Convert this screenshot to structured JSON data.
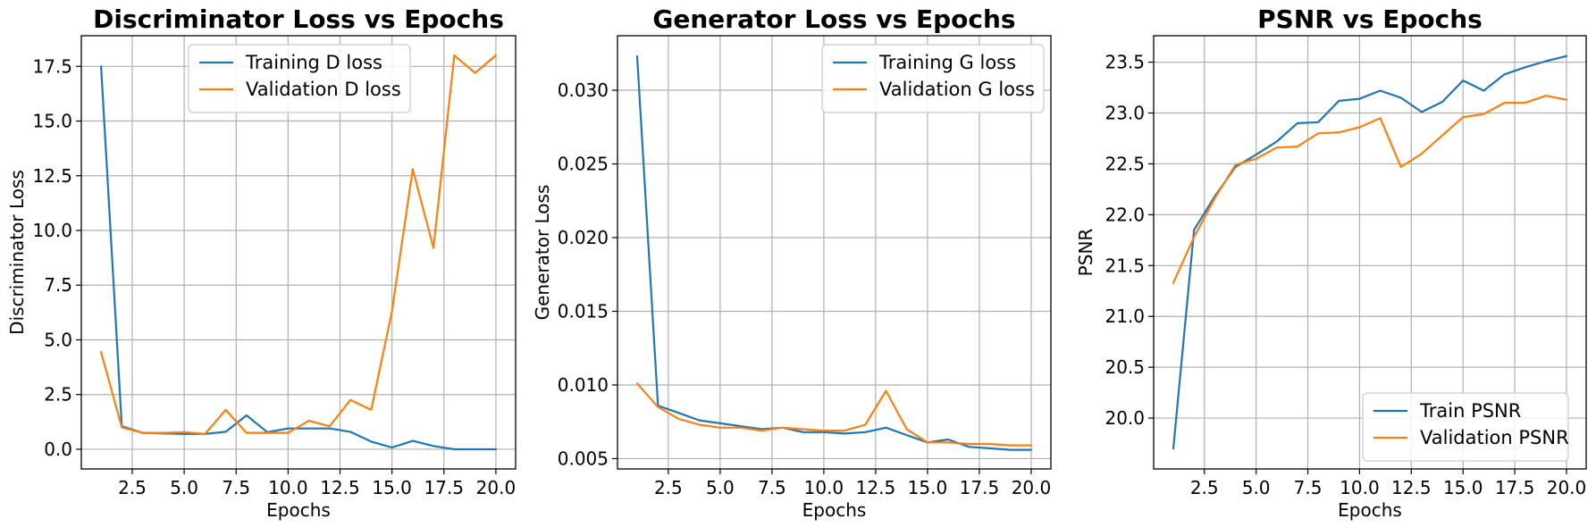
{
  "chart_data": [
    {
      "type": "line",
      "title": "Discriminator Loss vs Epochs",
      "xlabel": "Epochs",
      "ylabel": "Discriminator Loss",
      "xlim": [
        0.05,
        20.95
      ],
      "ylim": [
        -0.9,
        18.9
      ],
      "xticks": [
        2.5,
        5.0,
        7.5,
        10.0,
        12.5,
        15.0,
        17.5,
        20.0
      ],
      "xtick_labels": [
        "2.5",
        "5.0",
        "7.5",
        "10.0",
        "12.5",
        "15.0",
        "17.5",
        "20.0"
      ],
      "yticks": [
        0.0,
        2.5,
        5.0,
        7.5,
        10.0,
        12.5,
        15.0,
        17.5
      ],
      "ytick_labels": [
        "0.0",
        "2.5",
        "5.0",
        "7.5",
        "10.0",
        "12.5",
        "15.0",
        "17.5"
      ],
      "grid": true,
      "legend": "top-center",
      "x": [
        1,
        2,
        3,
        4,
        5,
        6,
        7,
        8,
        9,
        10,
        11,
        12,
        13,
        14,
        15,
        16,
        17,
        18,
        19,
        20
      ],
      "series": [
        {
          "name": "Training D loss",
          "color": "#1f77b4",
          "values": [
            17.5,
            1.05,
            0.75,
            0.72,
            0.7,
            0.7,
            0.8,
            1.55,
            0.78,
            0.95,
            0.95,
            0.95,
            0.8,
            0.35,
            0.08,
            0.38,
            0.15,
            0.0,
            0.0,
            0.0
          ]
        },
        {
          "name": "Validation D loss",
          "color": "#ff7f0e",
          "values": [
            4.45,
            1.0,
            0.75,
            0.75,
            0.78,
            0.7,
            1.8,
            0.75,
            0.75,
            0.75,
            1.3,
            1.05,
            2.25,
            1.8,
            6.3,
            12.8,
            9.2,
            18.0,
            17.2,
            18.0
          ]
        }
      ]
    },
    {
      "type": "line",
      "title": "Generator Loss vs Epochs",
      "xlabel": "Epochs",
      "ylabel": "Generator Loss",
      "xlim": [
        0.05,
        20.95
      ],
      "ylim": [
        0.0043,
        0.0337
      ],
      "xticks": [
        2.5,
        5.0,
        7.5,
        10.0,
        12.5,
        15.0,
        17.5,
        20.0
      ],
      "xtick_labels": [
        "2.5",
        "5.0",
        "7.5",
        "10.0",
        "12.5",
        "15.0",
        "17.5",
        "20.0"
      ],
      "yticks": [
        0.005,
        0.01,
        0.015,
        0.02,
        0.025,
        0.03
      ],
      "ytick_labels": [
        "0.005",
        "0.010",
        "0.015",
        "0.020",
        "0.025",
        "0.030"
      ],
      "grid": true,
      "legend": "top-right",
      "x": [
        1,
        2,
        3,
        4,
        5,
        6,
        7,
        8,
        9,
        10,
        11,
        12,
        13,
        14,
        15,
        16,
        17,
        18,
        19,
        20
      ],
      "series": [
        {
          "name": "Training G loss",
          "color": "#1f77b4",
          "values": [
            0.0323,
            0.0086,
            0.0081,
            0.0076,
            0.0074,
            0.0072,
            0.007,
            0.0071,
            0.0068,
            0.0068,
            0.0067,
            0.0068,
            0.0071,
            0.0066,
            0.0061,
            0.0063,
            0.0058,
            0.0057,
            0.0056,
            0.0056
          ]
        },
        {
          "name": "Validation G loss",
          "color": "#ff7f0e",
          "values": [
            0.0101,
            0.0085,
            0.0077,
            0.0073,
            0.0071,
            0.0071,
            0.0069,
            0.0071,
            0.007,
            0.0069,
            0.0069,
            0.0073,
            0.0096,
            0.007,
            0.0061,
            0.0061,
            0.006,
            0.006,
            0.0059,
            0.0059
          ]
        }
      ]
    },
    {
      "type": "line",
      "title": "PSNR vs Epochs",
      "xlabel": "Epochs",
      "ylabel": "PSNR",
      "xlim": [
        0.05,
        20.95
      ],
      "ylim": [
        19.5,
        23.76
      ],
      "xticks": [
        2.5,
        5.0,
        7.5,
        10.0,
        12.5,
        15.0,
        17.5,
        20.0
      ],
      "xtick_labels": [
        "2.5",
        "5.0",
        "7.5",
        "10.0",
        "12.5",
        "15.0",
        "17.5",
        "20.0"
      ],
      "yticks": [
        20.0,
        20.5,
        21.0,
        21.5,
        22.0,
        22.5,
        23.0,
        23.5
      ],
      "ytick_labels": [
        "20.0",
        "20.5",
        "21.0",
        "21.5",
        "22.0",
        "22.5",
        "23.0",
        "23.5"
      ],
      "grid": true,
      "legend": "bottom-right",
      "x": [
        1,
        2,
        3,
        4,
        5,
        6,
        7,
        8,
        9,
        10,
        11,
        12,
        13,
        14,
        15,
        16,
        17,
        18,
        19,
        20
      ],
      "series": [
        {
          "name": "Train PSNR",
          "color": "#1f77b4",
          "values": [
            19.7,
            21.85,
            22.18,
            22.47,
            22.59,
            22.72,
            22.9,
            22.91,
            23.12,
            23.14,
            23.22,
            23.15,
            23.01,
            23.11,
            23.32,
            23.22,
            23.38,
            23.45,
            23.51,
            23.56
          ]
        },
        {
          "name": "Validation PSNR",
          "color": "#ff7f0e",
          "values": [
            21.33,
            21.78,
            22.16,
            22.49,
            22.55,
            22.66,
            22.67,
            22.8,
            22.81,
            22.86,
            22.95,
            22.47,
            22.6,
            22.78,
            22.96,
            22.99,
            23.1,
            23.1,
            23.17,
            23.13
          ]
        }
      ]
    }
  ]
}
